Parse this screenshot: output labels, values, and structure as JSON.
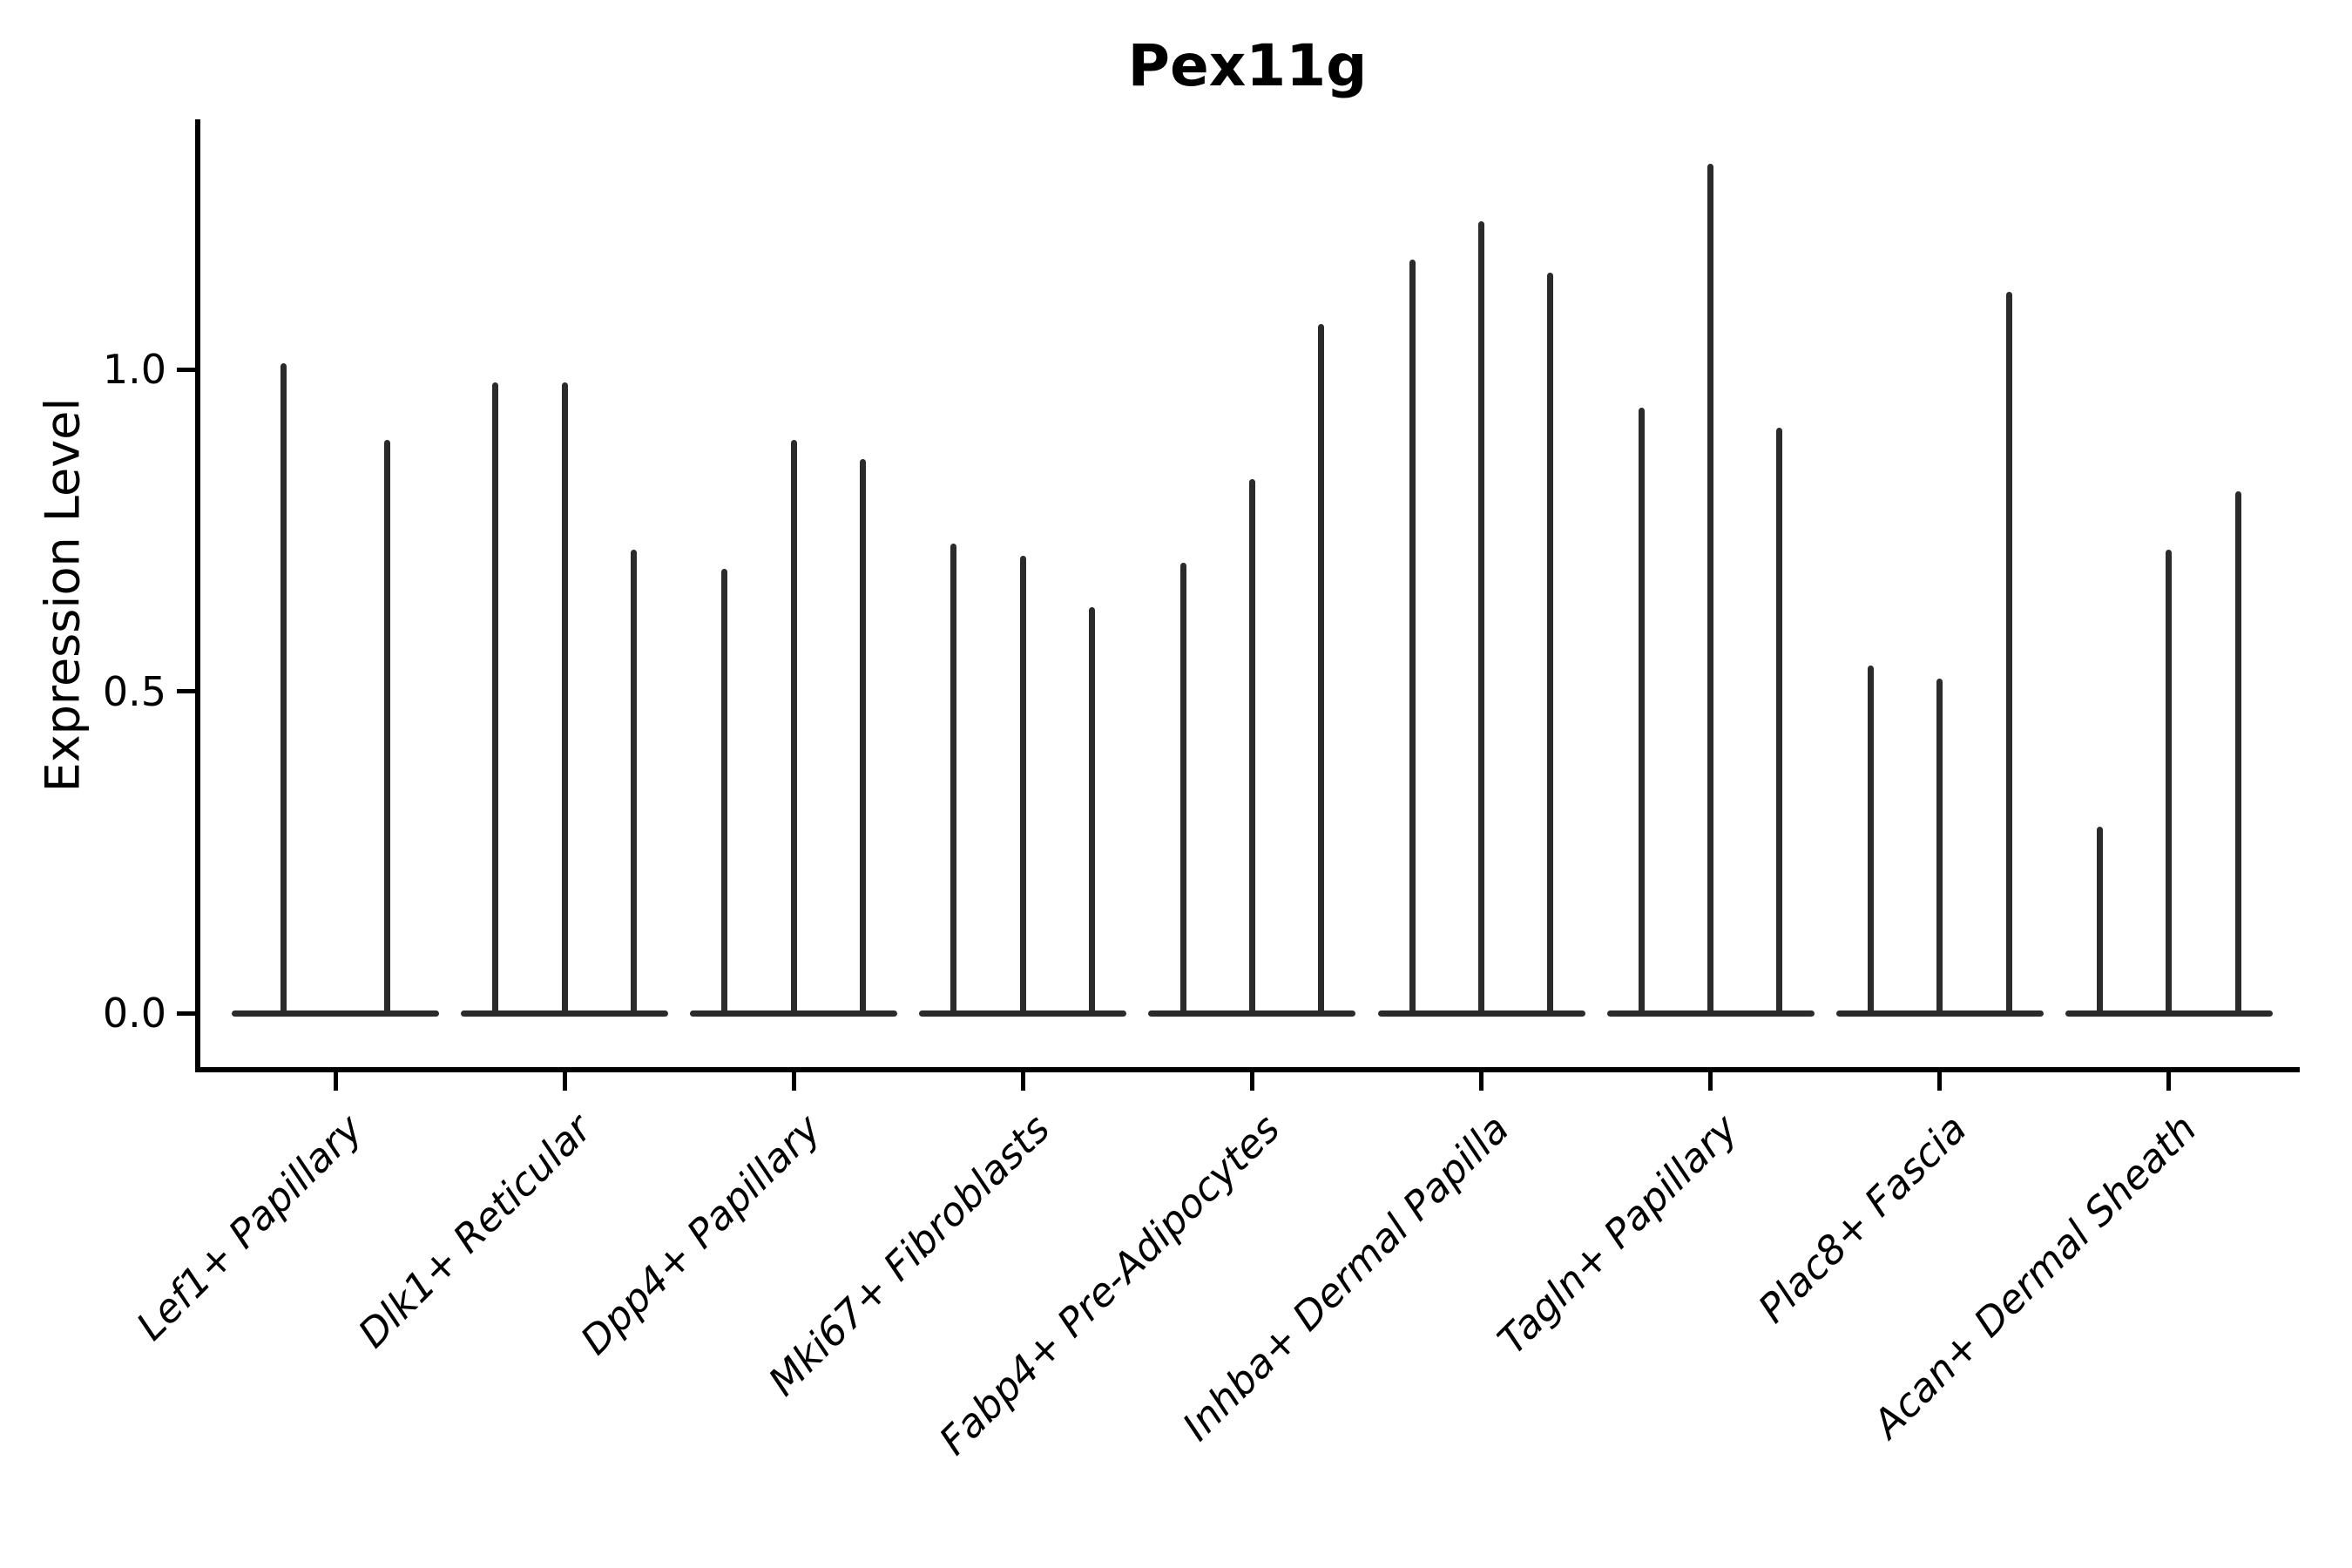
{
  "figure": {
    "title": "Pex11g",
    "ylabel": "Expression Level"
  },
  "chart_data": {
    "type": "violin",
    "title": "Pex11g",
    "xlabel": "",
    "ylabel": "Expression Level",
    "ylim": [
      -0.09,
      1.39
    ],
    "ytick_labels": [
      "0.0",
      "0.5",
      "1.0"
    ],
    "ytick_values": [
      0.0,
      0.5,
      1.0
    ],
    "grid": false,
    "legend": "none",
    "violin_color": "#2b2b2b",
    "axis_color": "#000000",
    "categories": [
      "Lef1+ Papillary",
      "Dlk1+ Reticular",
      "Dpp4+ Papillary",
      "Mki67+ Fibroblasts",
      "Fabp4+ Pre-Adipocytes",
      "Inhba+ Dermal Papilla",
      "Tagln+ Papillary",
      "Plac8+ Fascia",
      "Acan+ Dermal Sheath"
    ],
    "groups": [
      {
        "category": "Lef1+ Papillary",
        "violins": [
          {
            "min": 0,
            "max": 1.01
          },
          {
            "min": 0,
            "max": 0.89
          }
        ]
      },
      {
        "category": "Dlk1+ Reticular",
        "violins": [
          {
            "min": 0,
            "max": 0.98
          },
          {
            "min": 0,
            "max": 0.98
          },
          {
            "min": 0,
            "max": 0.72
          }
        ]
      },
      {
        "category": "Dpp4+ Papillary",
        "violins": [
          {
            "min": 0,
            "max": 0.69
          },
          {
            "min": 0,
            "max": 0.89
          },
          {
            "min": 0,
            "max": 0.86
          }
        ]
      },
      {
        "category": "Mki67+ Fibroblasts",
        "violins": [
          {
            "min": 0,
            "max": 0.73
          },
          {
            "min": 0,
            "max": 0.71
          },
          {
            "min": 0,
            "max": 0.63
          }
        ]
      },
      {
        "category": "Fabp4+ Pre-Adipocytes",
        "violins": [
          {
            "min": 0,
            "max": 0.7
          },
          {
            "min": 0,
            "max": 0.83
          },
          {
            "min": 0,
            "max": 1.07
          }
        ]
      },
      {
        "category": "Inhba+ Dermal Papilla",
        "violins": [
          {
            "min": 0,
            "max": 1.17
          },
          {
            "min": 0,
            "max": 1.23
          },
          {
            "min": 0,
            "max": 1.15
          }
        ]
      },
      {
        "category": "Tagln+ Papillary",
        "violins": [
          {
            "min": 0,
            "max": 0.94
          },
          {
            "min": 0,
            "max": 1.32
          },
          {
            "min": 0,
            "max": 0.91
          }
        ]
      },
      {
        "category": "Plac8+ Fascia",
        "violins": [
          {
            "min": 0,
            "max": 0.54
          },
          {
            "min": 0,
            "max": 0.52
          },
          {
            "min": 0,
            "max": 1.12
          }
        ]
      },
      {
        "category": "Acan+ Dermal Sheath",
        "violins": [
          {
            "min": 0,
            "max": 0.29
          },
          {
            "min": 0,
            "max": 0.72
          },
          {
            "min": 0,
            "max": 0.81
          }
        ]
      }
    ]
  }
}
